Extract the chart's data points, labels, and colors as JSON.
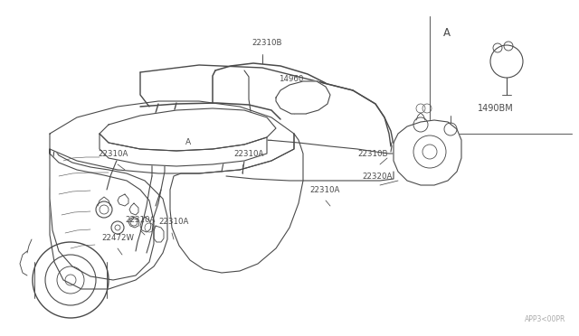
{
  "bg_color": "#ffffff",
  "line_color": "#4a4a4a",
  "label_color": "#4a4a4a",
  "fig_width": 6.4,
  "fig_height": 3.72,
  "dpi": 100,
  "watermark": "APP3<00PR",
  "inset_label": "A",
  "inset_part": "1490BM",
  "lw": 0.8
}
